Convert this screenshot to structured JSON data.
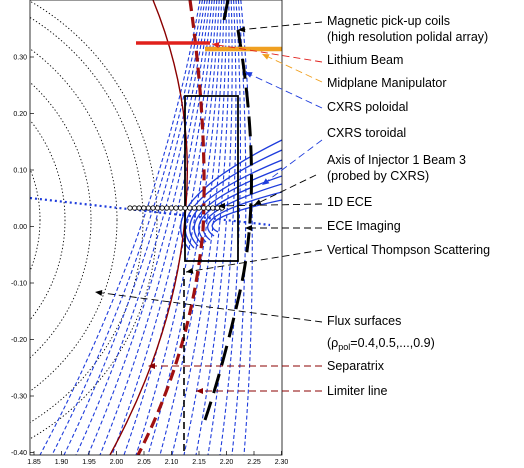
{
  "axes": {
    "x_ticks": [
      "1.85",
      "1.90",
      "1.95",
      "2.00",
      "2.05",
      "2.10",
      "2.15",
      "2.20",
      "2.25",
      "2.30"
    ],
    "y_ticks": [
      "0.30",
      "0.20",
      "0.10",
      "0.00",
      "-0.10",
      "-0.20",
      "-0.30",
      "-0.40"
    ]
  },
  "colors": {
    "flux": "#000000",
    "separatrix": "#8b0000",
    "limiter": "#000000",
    "cxrs": "#1e3cdc",
    "lithium": "#e0201c",
    "manipulator": "#f0a020",
    "thomson": "#000000"
  },
  "labels": [
    {
      "key": "mag",
      "lines": [
        "Magnetic pick-up coils",
        "(high resolution polidal array)"
      ]
    },
    {
      "key": "li",
      "lines": [
        "Lithium Beam"
      ]
    },
    {
      "key": "manip",
      "lines": [
        "Midplane Manipulator"
      ]
    },
    {
      "key": "cxp",
      "lines": [
        "CXRS poloidal"
      ]
    },
    {
      "key": "cxt",
      "lines": [
        "CXRS toroidal"
      ]
    },
    {
      "key": "inj",
      "lines": [
        "Axis of Injector 1 Beam 3",
        "(probed by CXRS)"
      ]
    },
    {
      "key": "ece1d",
      "lines": [
        "1D ECE"
      ]
    },
    {
      "key": "ecei",
      "lines": [
        "ECE Imaging"
      ]
    },
    {
      "key": "vts",
      "lines": [
        "Vertical Thompson Scattering"
      ]
    },
    {
      "key": "flux",
      "lines": [
        "Flux surfaces"
      ]
    },
    {
      "key": "sep",
      "lines": [
        "Separatrix"
      ]
    },
    {
      "key": "lim",
      "lines": [
        "Limiter line"
      ]
    }
  ],
  "rho_label": {
    "prefix": "(ρ",
    "sub": "pol",
    "suffix": "=0.4,0.5,...,0.9)"
  }
}
